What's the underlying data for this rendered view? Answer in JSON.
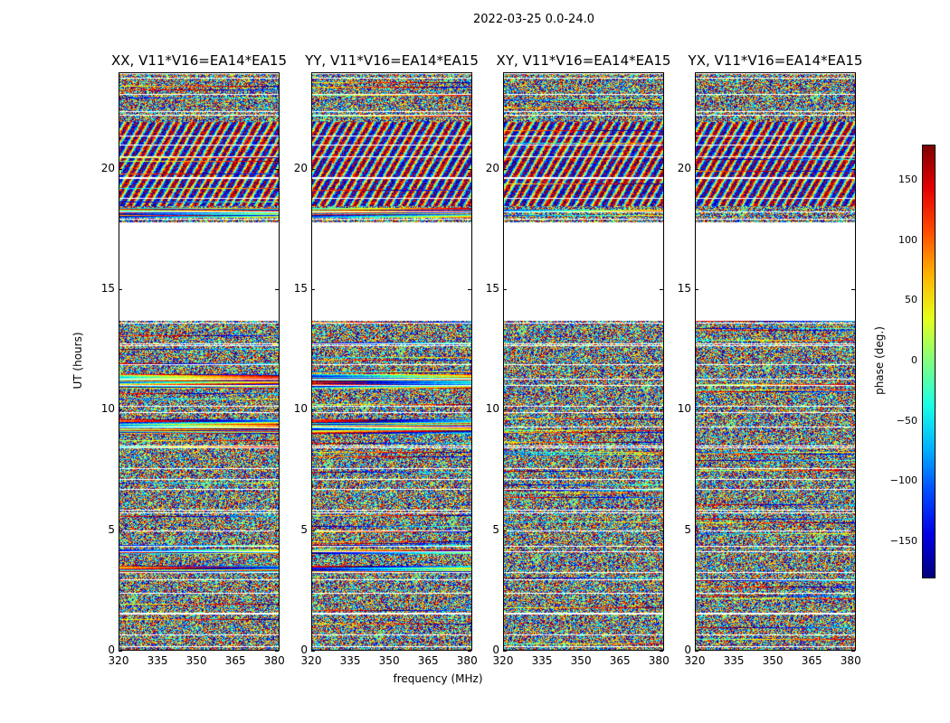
{
  "suptitle": "2022-03-25 0.0-24.0",
  "colorbar": {
    "label": "phase (deg.)",
    "min": -180,
    "max": 180,
    "ticks": [
      150,
      100,
      50,
      0,
      -50,
      -100,
      -150
    ],
    "tick_labels": [
      "150",
      "100",
      "50",
      "0",
      "−50",
      "−100",
      "−150"
    ],
    "colormap": "jet"
  },
  "chart_data": [
    {
      "type": "heatmap",
      "title": "XX, V11*V16=EA14*EA15",
      "xlabel": "",
      "ylabel": "UT (hours)",
      "xlim": [
        320,
        382
      ],
      "ylim": [
        0,
        24
      ],
      "xticks": [
        "320",
        "335",
        "350",
        "365",
        "380"
      ],
      "yticks": [
        "0",
        "5",
        "10",
        "15",
        "20"
      ],
      "empty_range_hours": [
        13.7,
        17.8
      ]
    },
    {
      "type": "heatmap",
      "title": "YY, V11*V16=EA14*EA15",
      "xlabel": "frequency (MHz)",
      "ylabel": "",
      "xlim": [
        320,
        382
      ],
      "ylim": [
        0,
        24
      ],
      "xticks": [
        "320",
        "335",
        "350",
        "365",
        "380"
      ],
      "yticks": [
        "0",
        "5",
        "10",
        "15",
        "20"
      ],
      "empty_range_hours": [
        13.7,
        17.8
      ]
    },
    {
      "type": "heatmap",
      "title": "XY, V11*V16=EA14*EA15",
      "xlabel": "",
      "ylabel": "",
      "xlim": [
        320,
        382
      ],
      "ylim": [
        0,
        24
      ],
      "xticks": [
        "320",
        "335",
        "350",
        "365",
        "380"
      ],
      "yticks": [
        "0",
        "5",
        "10",
        "15",
        "20"
      ],
      "empty_range_hours": [
        13.7,
        17.8
      ]
    },
    {
      "type": "heatmap",
      "title": "YX, V11*V16=EA14*EA15",
      "xlabel": "",
      "ylabel": "",
      "xlim": [
        320,
        382
      ],
      "ylim": [
        0,
        24
      ],
      "xticks": [
        "320",
        "335",
        "350",
        "365",
        "380"
      ],
      "yticks": [
        "0",
        "5",
        "10",
        "15",
        "20"
      ],
      "empty_range_hours": [
        13.7,
        17.8
      ]
    }
  ]
}
